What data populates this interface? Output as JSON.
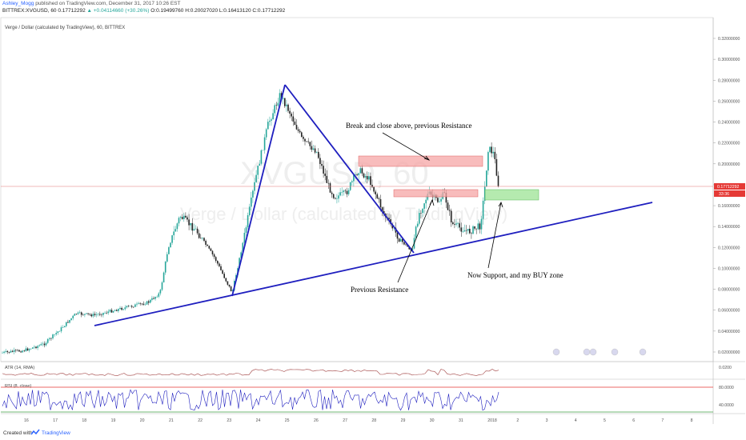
{
  "header": {
    "author": "Ashley_Mogg",
    "published": "published on TradingView.com, December 31, 2017 10:26 EST",
    "symbol": "BITTREX:XVGUSD, 60",
    "last": "0.17712292",
    "change": "▲ +0.04114660 (+30.26%)",
    "ohlc": "O:0.19499760 H:0.20027020 L:0.16413120 C:0.17712292"
  },
  "chart": {
    "legend": "Verge / Dollar (calculated by TradingView), 60, BITTREX",
    "watermark_symbol": "XVGUSD, 60",
    "watermark_name": "Verge / Dollar (calculated by TradingView)",
    "price_ticks": [
      "0.32000000",
      "0.30000000",
      "0.28000000",
      "0.26000000",
      "0.24000000",
      "0.22000000",
      "0.20000000",
      "0.18000000",
      "0.16000000",
      "0.14000000",
      "0.12000000",
      "0.10000000",
      "0.08000000",
      "0.06000000",
      "0.04000000",
      "0.02000000"
    ],
    "current_price_label": "0.17712292",
    "countdown_label": "33:36",
    "date_ticks": [
      "16",
      "17",
      "18",
      "19",
      "20",
      "21",
      "22",
      "23",
      "24",
      "25",
      "26",
      "27",
      "28",
      "29",
      "30",
      "31",
      "2018",
      "2",
      "3",
      "4",
      "5",
      "6",
      "7",
      "8"
    ],
    "annotations": {
      "break": "Break and close above, previous Resistance",
      "prev_resistance": "Previous Resistance",
      "support": "Now Support, and my BUY zone"
    },
    "colors": {
      "up": "#26a69a",
      "down": "#222222",
      "trendline": "#1f1fbf",
      "resistance_zone": "#f6a6a6",
      "support_zone": "#a8e6a1",
      "price_line": "#e57373"
    }
  },
  "atr": {
    "label": "ATR (14, RMA)",
    "tick": "0.0200"
  },
  "rsi": {
    "label": "RSI (8, close)",
    "ticks": [
      "80.0000",
      "40.0000"
    ]
  },
  "footer": {
    "created": "Created with",
    "brand": "TradingView"
  }
}
